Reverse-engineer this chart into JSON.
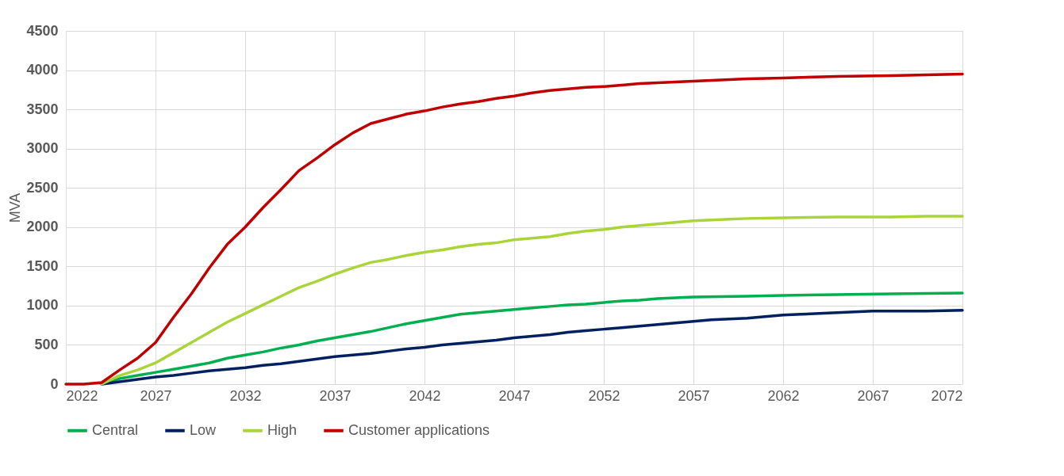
{
  "chart_data": {
    "type": "line",
    "ylabel": "MVA",
    "xlim": [
      2022,
      2072
    ],
    "xticks": [
      2022,
      2027,
      2032,
      2037,
      2042,
      2047,
      2052,
      2057,
      2062,
      2067,
      2072
    ],
    "ylim": [
      0,
      4500
    ],
    "yticks": [
      0,
      500,
      1000,
      1500,
      2000,
      2500,
      3000,
      3500,
      4000,
      4500
    ],
    "grid": true,
    "legend": "bottom",
    "series": [
      {
        "name": "Central",
        "color": "#00b050",
        "x": [
          2024,
          2025,
          2026,
          2027,
          2028,
          2029,
          2030,
          2031,
          2032,
          2033,
          2034,
          2035,
          2036,
          2037,
          2038,
          2039,
          2040,
          2041,
          2042,
          2043,
          2044,
          2045,
          2046,
          2047,
          2048,
          2049,
          2050,
          2051,
          2052,
          2053,
          2054,
          2055,
          2056,
          2057,
          2060,
          2062,
          2065,
          2068,
          2072
        ],
        "values": [
          0,
          70,
          110,
          150,
          190,
          230,
          270,
          330,
          370,
          410,
          460,
          500,
          550,
          590,
          630,
          670,
          720,
          770,
          810,
          850,
          890,
          910,
          930,
          950,
          970,
          990,
          1010,
          1020,
          1040,
          1060,
          1070,
          1090,
          1100,
          1110,
          1120,
          1130,
          1140,
          1150,
          1160
        ]
      },
      {
        "name": "Low",
        "color": "#002060",
        "x": [
          2024,
          2025,
          2026,
          2027,
          2028,
          2029,
          2030,
          2031,
          2032,
          2033,
          2034,
          2035,
          2036,
          2037,
          2038,
          2039,
          2040,
          2041,
          2042,
          2043,
          2044,
          2045,
          2046,
          2047,
          2048,
          2049,
          2050,
          2051,
          2052,
          2053,
          2054,
          2055,
          2056,
          2057,
          2058,
          2059,
          2060,
          2061,
          2062,
          2063,
          2064,
          2065,
          2066,
          2067,
          2070,
          2072
        ],
        "values": [
          0,
          30,
          60,
          90,
          110,
          140,
          170,
          190,
          210,
          240,
          260,
          290,
          320,
          350,
          370,
          390,
          420,
          450,
          470,
          500,
          520,
          540,
          560,
          590,
          610,
          630,
          660,
          680,
          700,
          720,
          740,
          760,
          780,
          800,
          820,
          830,
          840,
          860,
          880,
          890,
          900,
          910,
          920,
          930,
          930,
          940
        ]
      },
      {
        "name": "High",
        "color": "#a9d43a",
        "x": [
          2024,
          2025,
          2026,
          2027,
          2028,
          2029,
          2030,
          2031,
          2032,
          2033,
          2034,
          2035,
          2036,
          2037,
          2038,
          2039,
          2040,
          2041,
          2042,
          2043,
          2044,
          2045,
          2046,
          2047,
          2048,
          2049,
          2050,
          2051,
          2052,
          2053,
          2054,
          2055,
          2056,
          2057,
          2058,
          2059,
          2060,
          2062,
          2065,
          2068,
          2070,
          2072
        ],
        "values": [
          0,
          110,
          180,
          270,
          400,
          530,
          660,
          790,
          900,
          1010,
          1120,
          1230,
          1310,
          1400,
          1480,
          1550,
          1590,
          1640,
          1680,
          1710,
          1750,
          1780,
          1800,
          1840,
          1860,
          1880,
          1920,
          1950,
          1970,
          2000,
          2020,
          2040,
          2060,
          2080,
          2090,
          2100,
          2110,
          2120,
          2130,
          2130,
          2140,
          2140
        ]
      },
      {
        "name": "Customer applications",
        "color": "#c00000",
        "x": [
          2022,
          2023,
          2024,
          2025,
          2026,
          2027,
          2028,
          2029,
          2030,
          2031,
          2032,
          2033,
          2034,
          2035,
          2036,
          2037,
          2038,
          2039,
          2040,
          2041,
          2042,
          2043,
          2044,
          2045,
          2046,
          2047,
          2048,
          2049,
          2050,
          2051,
          2052,
          2053,
          2054,
          2055,
          2056,
          2057,
          2058,
          2059,
          2060,
          2062,
          2065,
          2068,
          2072
        ],
        "values": [
          0,
          0,
          20,
          180,
          330,
          530,
          850,
          1150,
          1480,
          1780,
          2000,
          2250,
          2480,
          2720,
          2880,
          3050,
          3200,
          3320,
          3380,
          3440,
          3480,
          3530,
          3570,
          3600,
          3640,
          3670,
          3710,
          3740,
          3760,
          3780,
          3790,
          3810,
          3830,
          3840,
          3850,
          3860,
          3870,
          3880,
          3890,
          3900,
          3920,
          3930,
          3950
        ]
      }
    ]
  }
}
